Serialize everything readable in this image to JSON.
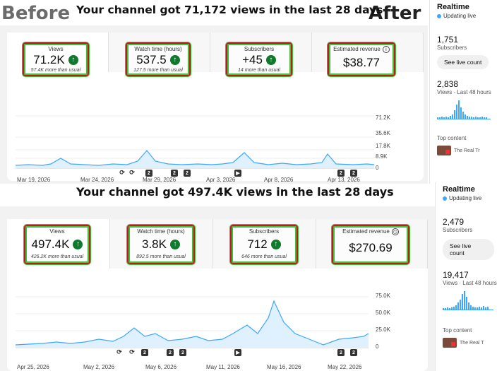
{
  "labels": {
    "before": "Before",
    "after": "After"
  },
  "before": {
    "headline": "Your channel got 71,172 views in the last 28 days",
    "metrics": [
      {
        "label": "Views",
        "value": "71.2K",
        "sub": "57.4K more than usual",
        "icon": "arrow-up-icon"
      },
      {
        "label": "Watch time (hours)",
        "value": "537.5",
        "sub": "127.5 more than usual",
        "icon": "arrow-up-icon"
      },
      {
        "label": "Subscribers",
        "value": "+45",
        "sub": "14 more than usual",
        "icon": "arrow-up-icon"
      },
      {
        "label": "Estimated revenue",
        "value": "$38.77",
        "sub": "",
        "icon": "info-icon"
      }
    ],
    "y_ticks": [
      "71.2K",
      "35.6K",
      "17.8K",
      "8.9K",
      "0"
    ],
    "x_ticks": [
      "Mar 19, 2026",
      "Mar 24, 2026",
      "Mar 29, 2026",
      "Apr 3, 2026",
      "Apr 8, 2026",
      "Apr 13, 2026"
    ],
    "markers": [
      "2",
      "2",
      "2",
      "2",
      "2"
    ],
    "sidebar": {
      "title": "Realtime",
      "live": "Updating live",
      "subs_value": "1,751",
      "subs_label": "Subscribers",
      "button": "See live count",
      "views_value": "2,838",
      "views_label": "Views · Last 48 hours",
      "top_content": "Top content",
      "top_item": "The Real Tr"
    }
  },
  "after": {
    "headline": "Your channel got 497.4K views in the last 28 days",
    "metrics": [
      {
        "label": "Views",
        "value": "497.4K",
        "sub": "426.2K more than usual",
        "icon": "arrow-up-icon"
      },
      {
        "label": "Watch time (hours)",
        "value": "3.8K",
        "sub": "892.5 more than usual",
        "icon": "arrow-up-icon"
      },
      {
        "label": "Subscribers",
        "value": "712",
        "sub": "646 more than usual",
        "icon": "arrow-up-icon"
      },
      {
        "label": "Estimated revenue",
        "value": "$270.69",
        "sub": "",
        "icon": "clock-icon"
      }
    ],
    "y_ticks": [
      "75.0K",
      "50.0K",
      "25.0K",
      "0"
    ],
    "x_ticks": [
      "Apr 25, 2026",
      "May 2, 2026",
      "May 6, 2026",
      "May 11, 2026",
      "May 16, 2026",
      "May 22, 2026"
    ],
    "markers": [
      "2",
      "2",
      "2",
      "2",
      "2"
    ],
    "sidebar": {
      "title": "Realtime",
      "live": "Updating live",
      "subs_value": "2,479",
      "subs_label": "Subscribers",
      "button": "See live count",
      "views_value": "19,417",
      "views_label": "Views · Last 48 hours",
      "top_content": "Top content",
      "top_item": "The Real T"
    }
  },
  "colors": {
    "accent": "#3ea6ff",
    "up": "#0f7a2c",
    "highlight_red": "#c8161d",
    "highlight_green": "#36c43b"
  }
}
